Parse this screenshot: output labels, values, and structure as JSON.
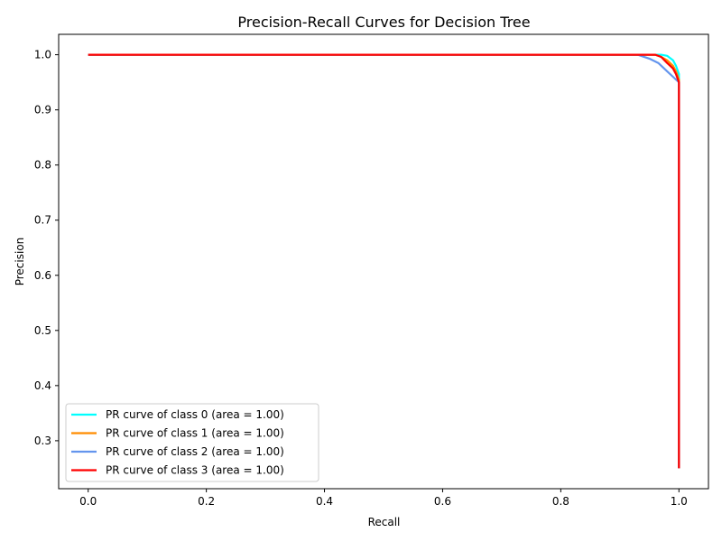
{
  "chart_data": {
    "type": "line",
    "title": "Precision-Recall Curves for Decision Tree",
    "xlabel": "Recall",
    "ylabel": "Precision",
    "xlim": [
      -0.05,
      1.05
    ],
    "ylim": [
      0.213,
      1.037
    ],
    "xticks": [
      "0.0",
      "0.2",
      "0.4",
      "0.6",
      "0.8",
      "1.0"
    ],
    "yticks": [
      "0.3",
      "0.4",
      "0.5",
      "0.6",
      "0.7",
      "0.8",
      "0.9",
      "1.0"
    ],
    "grid": false,
    "legend_position": "lower-left",
    "series": [
      {
        "name": "PR curve of class 0 (area = 1.00)",
        "color": "#00ffff",
        "x": [
          0.0,
          0.97,
          0.98,
          0.99,
          0.995,
          1.0,
          1.0,
          1.0
        ],
        "y": [
          1.0,
          1.0,
          0.998,
          0.99,
          0.98,
          0.965,
          0.96,
          0.25
        ]
      },
      {
        "name": "PR curve of class 1 (area = 1.00)",
        "color": "#ff8c00",
        "x": [
          0.0,
          0.96,
          0.97,
          0.98,
          0.99,
          0.995,
          1.0,
          1.0
        ],
        "y": [
          1.0,
          1.0,
          0.996,
          0.99,
          0.98,
          0.97,
          0.955,
          0.25
        ]
      },
      {
        "name": "PR curve of class 2 (area = 1.00)",
        "color": "#6495ed",
        "x": [
          0.0,
          0.93,
          0.95,
          0.965,
          0.98,
          0.99,
          1.0,
          1.0
        ],
        "y": [
          1.0,
          1.0,
          0.993,
          0.985,
          0.97,
          0.96,
          0.95,
          0.25
        ]
      },
      {
        "name": "PR curve of class 3 (area = 1.00)",
        "color": "#ff0000",
        "x": [
          0.0,
          0.96,
          0.97,
          0.98,
          0.99,
          0.995,
          1.0,
          1.0
        ],
        "y": [
          1.0,
          1.0,
          0.996,
          0.985,
          0.975,
          0.965,
          0.95,
          0.25
        ]
      }
    ]
  }
}
